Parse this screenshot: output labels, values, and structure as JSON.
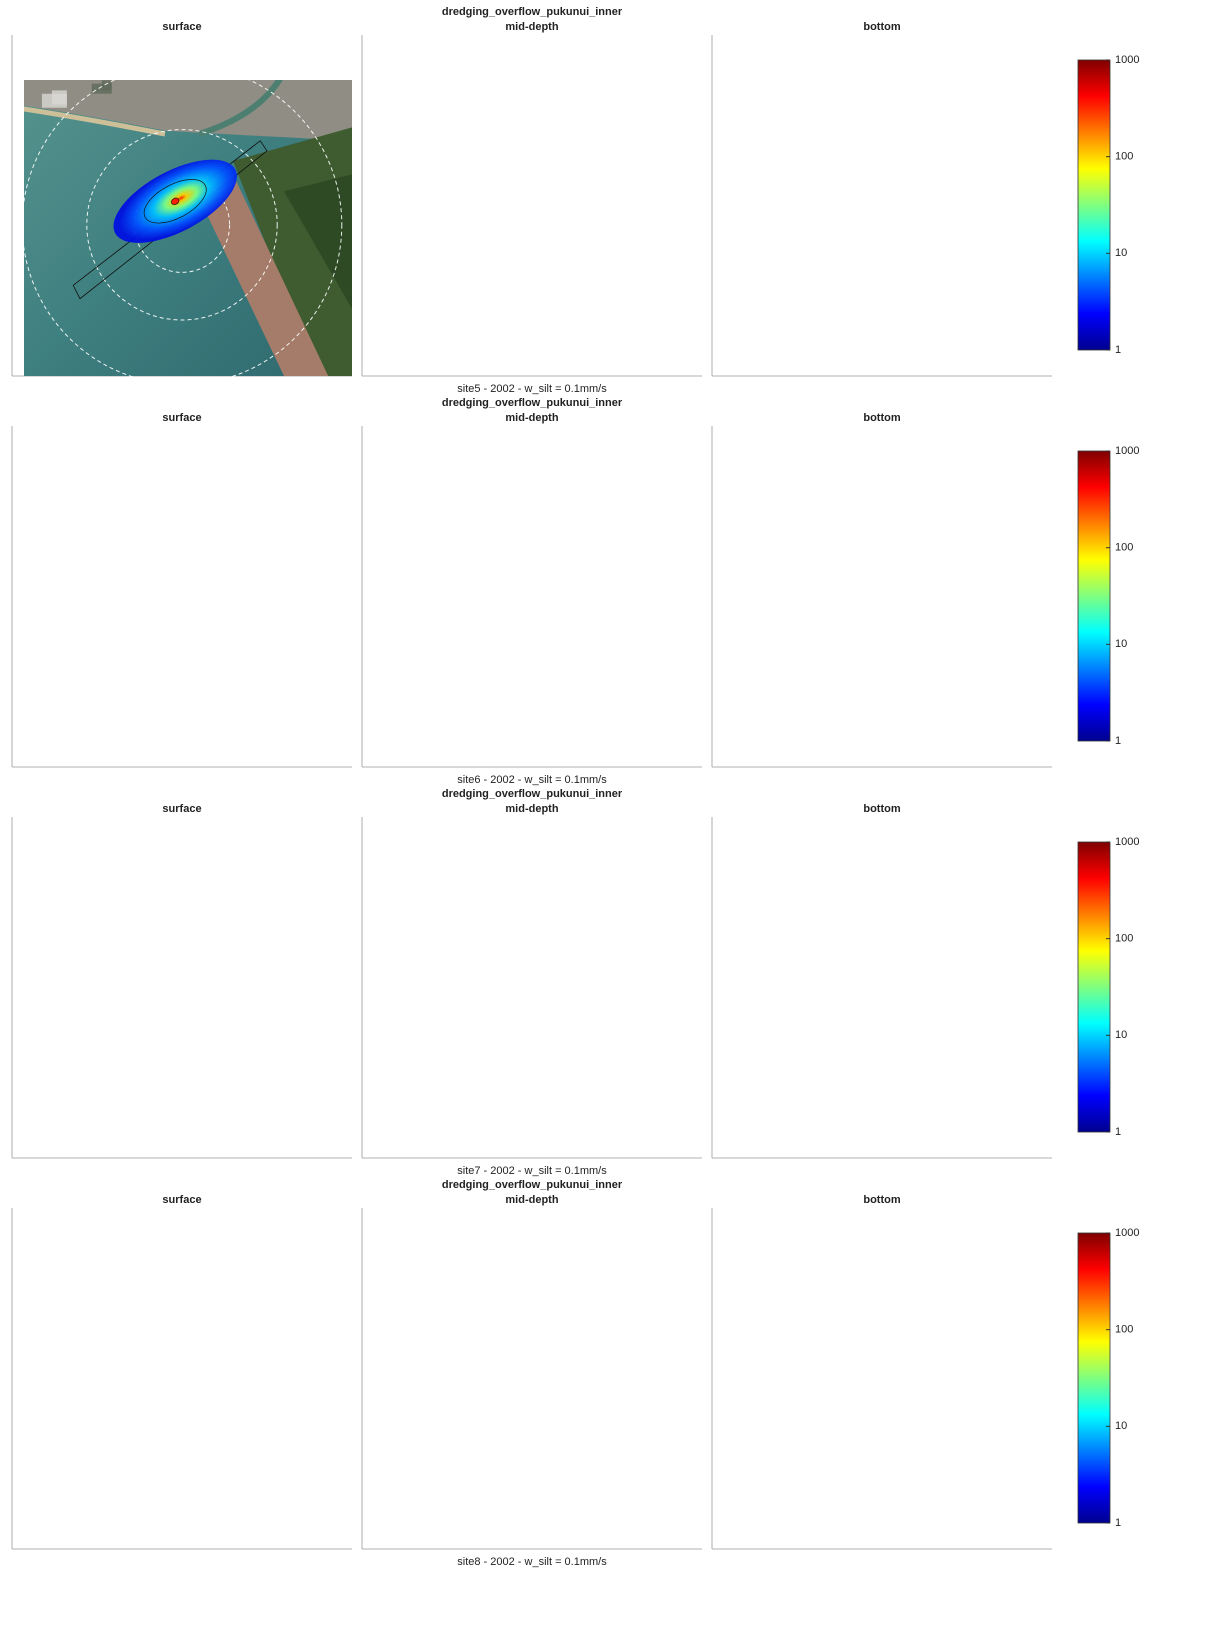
{
  "chart_data": [
    {
      "type": "map",
      "title": "dredging_overflow_pukunui_inner",
      "panels": [
        "surface",
        "mid-depth",
        "bottom"
      ],
      "caption": "site5 - 2002 - w_silt = 0.1mm/s",
      "colorbar": {
        "scale": "log",
        "lim": [
          1,
          1000
        ],
        "ticks": [
          1,
          10,
          100,
          1000
        ]
      }
    },
    {
      "type": "map",
      "title": "dredging_overflow_pukunui_inner",
      "panels": [
        "surface",
        "mid-depth",
        "bottom"
      ],
      "caption": "site6 - 2002 - w_silt = 0.1mm/s",
      "colorbar": {
        "scale": "log",
        "lim": [
          1,
          1000
        ],
        "ticks": [
          1,
          10,
          100,
          1000
        ]
      }
    },
    {
      "type": "map",
      "title": "dredging_overflow_pukunui_inner",
      "panels": [
        "surface",
        "mid-depth",
        "bottom"
      ],
      "caption": "site7 - 2002 - w_silt = 0.1mm/s",
      "colorbar": {
        "scale": "log",
        "lim": [
          1,
          1000
        ],
        "ticks": [
          1,
          10,
          100,
          1000
        ]
      }
    },
    {
      "type": "map",
      "title": "dredging_overflow_pukunui_inner",
      "panels": [
        "surface",
        "mid-depth",
        "bottom"
      ],
      "caption": "site8 - 2002 - w_silt = 0.1mm/s",
      "colorbar": {
        "scale": "log",
        "lim": [
          1,
          1000
        ],
        "ticks": [
          1,
          10,
          100,
          1000
        ]
      }
    }
  ]
}
